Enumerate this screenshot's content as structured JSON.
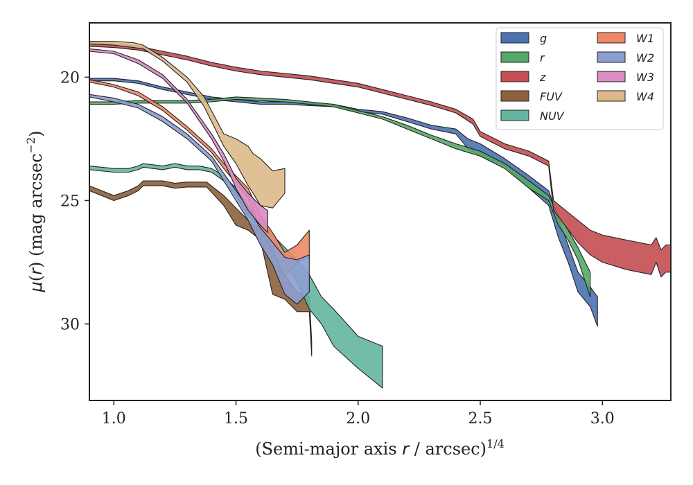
{
  "chart_data": {
    "type": "area",
    "xlabel_main": "(Semi-major axis ",
    "xlabel_var": "r",
    "xlabel_tail": " / arcsec)",
    "xlabel_exp": "1/4",
    "ylabel_main": "(",
    "ylabel_mu": "μ",
    "ylabel_var": "r",
    "ylabel_tail": ") (mag arcsec",
    "ylabel_exp": "−2",
    "ylabel_close": ")",
    "xlim": [
      0.9,
      3.28
    ],
    "ylim": [
      33.1,
      17.8
    ],
    "y_inverted": true,
    "grid": false,
    "legend_placement": "top-right",
    "xticks": [
      {
        "v": 1.0,
        "label": "1.0"
      },
      {
        "v": 1.5,
        "label": "1.5"
      },
      {
        "v": 2.0,
        "label": "2.0"
      },
      {
        "v": 2.5,
        "label": "2.5"
      },
      {
        "v": 3.0,
        "label": "3.0"
      }
    ],
    "yticks": [
      {
        "v": 20,
        "label": "20"
      },
      {
        "v": 25,
        "label": "25"
      },
      {
        "v": 30,
        "label": "30"
      }
    ],
    "series": [
      {
        "name": "g",
        "color": "#4c72b0",
        "x": [
          0.9,
          1.0,
          1.1,
          1.2,
          1.3,
          1.4,
          1.5,
          1.6,
          1.7,
          1.8,
          1.9,
          2.0,
          2.1,
          2.2,
          2.3,
          2.4,
          2.45,
          2.5,
          2.6,
          2.7,
          2.78,
          2.82,
          2.86,
          2.9,
          2.95,
          2.98
        ],
        "y_upper": [
          20.05,
          20.05,
          20.15,
          20.4,
          20.6,
          20.8,
          20.9,
          21.0,
          21.0,
          21.05,
          21.1,
          21.3,
          21.4,
          21.65,
          21.95,
          22.1,
          22.5,
          22.7,
          23.3,
          24.0,
          24.6,
          25.7,
          26.8,
          27.9,
          28.5,
          28.9
        ],
        "y_lower": [
          20.15,
          20.15,
          20.25,
          20.5,
          20.7,
          20.9,
          21.0,
          21.1,
          21.1,
          21.15,
          21.2,
          21.4,
          21.5,
          21.8,
          22.1,
          22.3,
          22.9,
          23.2,
          23.6,
          24.5,
          25.2,
          26.5,
          27.5,
          28.7,
          29.3,
          30.1
        ]
      },
      {
        "name": "r",
        "color": "#55a868",
        "x": [
          0.9,
          1.0,
          1.1,
          1.2,
          1.3,
          1.4,
          1.5,
          1.6,
          1.7,
          1.8,
          1.9,
          2.0,
          2.1,
          2.2,
          2.3,
          2.4,
          2.5,
          2.6,
          2.7,
          2.78,
          2.82,
          2.86,
          2.9,
          2.95
        ],
        "y_upper": [
          21.0,
          21.0,
          20.95,
          20.95,
          20.95,
          20.9,
          20.8,
          20.85,
          20.9,
          21.0,
          21.1,
          21.35,
          21.6,
          21.95,
          22.35,
          22.7,
          23.0,
          23.5,
          24.2,
          24.8,
          25.6,
          26.2,
          26.9,
          27.9
        ],
        "y_lower": [
          21.1,
          21.1,
          21.05,
          21.05,
          21.05,
          21.0,
          20.9,
          20.95,
          21.0,
          21.1,
          21.2,
          21.45,
          21.7,
          22.1,
          22.5,
          22.9,
          23.2,
          23.7,
          24.5,
          25.0,
          26.0,
          26.6,
          27.4,
          28.9
        ]
      },
      {
        "name": "z",
        "color": "#c44e52",
        "x": [
          0.9,
          1.0,
          1.1,
          1.2,
          1.3,
          1.4,
          1.5,
          1.6,
          1.7,
          1.8,
          1.9,
          2.0,
          2.1,
          2.2,
          2.3,
          2.4,
          2.47,
          2.5,
          2.6,
          2.7,
          2.78,
          2.8,
          2.9,
          2.95,
          3.0,
          3.1,
          3.2,
          3.22,
          3.24,
          3.26,
          3.28
        ],
        "y_upper": [
          18.6,
          18.65,
          18.75,
          18.95,
          19.15,
          19.4,
          19.6,
          19.75,
          19.85,
          19.95,
          20.1,
          20.25,
          20.5,
          20.75,
          21.0,
          21.3,
          21.7,
          22.2,
          22.7,
          23.0,
          23.4,
          25.0,
          25.8,
          26.2,
          26.4,
          26.6,
          26.8,
          26.5,
          27.0,
          26.8,
          26.8
        ],
        "y_lower": [
          18.75,
          18.8,
          18.9,
          19.1,
          19.3,
          19.55,
          19.75,
          19.9,
          20.0,
          20.1,
          20.25,
          20.4,
          20.65,
          20.9,
          21.15,
          21.45,
          21.9,
          22.4,
          22.9,
          23.2,
          23.6,
          25.4,
          26.7,
          27.2,
          27.5,
          27.8,
          28.0,
          27.5,
          28.1,
          27.9,
          27.9
        ]
      },
      {
        "name": "FUV",
        "color": "#8c613c",
        "x": [
          0.9,
          1.0,
          1.06,
          1.1,
          1.12,
          1.2,
          1.25,
          1.3,
          1.38,
          1.45,
          1.5,
          1.55,
          1.6,
          1.65,
          1.7,
          1.75,
          1.8,
          1.81
        ],
        "y_upper": [
          24.4,
          24.8,
          24.6,
          24.4,
          24.2,
          24.2,
          24.3,
          24.25,
          24.25,
          24.8,
          25.3,
          25.8,
          26.2,
          27.0,
          28.0,
          28.7,
          28.9,
          30.7
        ],
        "y_lower": [
          24.6,
          25.0,
          24.8,
          24.6,
          24.4,
          24.4,
          24.5,
          24.45,
          24.45,
          25.2,
          26.0,
          26.2,
          26.6,
          28.8,
          29.0,
          29.5,
          29.5,
          31.3
        ]
      },
      {
        "name": "NUV",
        "color": "#64b5a0",
        "x": [
          0.9,
          1.0,
          1.06,
          1.1,
          1.12,
          1.2,
          1.25,
          1.3,
          1.35,
          1.4,
          1.45,
          1.5,
          1.55,
          1.6,
          1.65,
          1.7,
          1.75,
          1.8,
          1.85,
          1.9,
          2.0,
          2.1
        ],
        "y_upper": [
          23.6,
          23.7,
          23.7,
          23.6,
          23.5,
          23.6,
          23.5,
          23.6,
          23.6,
          23.7,
          24.0,
          24.5,
          25.2,
          25.9,
          26.4,
          26.9,
          27.4,
          28.0,
          28.9,
          29.4,
          30.5,
          30.9
        ],
        "y_lower": [
          23.75,
          23.85,
          23.85,
          23.75,
          23.65,
          23.75,
          23.65,
          23.75,
          23.75,
          23.85,
          24.2,
          24.8,
          25.6,
          26.2,
          26.9,
          27.5,
          28.3,
          29.4,
          30.0,
          30.9,
          31.8,
          32.6
        ]
      },
      {
        "name": "W1",
        "color": "#ee8866",
        "x": [
          0.9,
          1.0,
          1.1,
          1.2,
          1.3,
          1.4,
          1.45,
          1.5,
          1.55,
          1.6,
          1.65,
          1.7,
          1.75,
          1.8
        ],
        "y_upper": [
          20.1,
          20.3,
          20.6,
          21.2,
          22.0,
          22.9,
          23.5,
          24.0,
          24.5,
          25.6,
          26.3,
          27.1,
          26.8,
          26.2
        ],
        "y_lower": [
          20.2,
          20.4,
          20.75,
          21.35,
          22.15,
          23.05,
          23.7,
          24.3,
          24.9,
          26.2,
          27.0,
          28.1,
          27.5,
          27.3
        ]
      },
      {
        "name": "W2",
        "color": "#8c9ed0",
        "x": [
          0.9,
          1.0,
          1.1,
          1.2,
          1.3,
          1.4,
          1.45,
          1.5,
          1.55,
          1.6,
          1.65,
          1.7,
          1.75,
          1.8
        ],
        "y_upper": [
          20.7,
          20.85,
          21.1,
          21.6,
          22.3,
          23.2,
          23.9,
          24.6,
          25.3,
          26.1,
          26.7,
          27.3,
          27.4,
          27.2
        ],
        "y_lower": [
          20.8,
          21.0,
          21.25,
          21.8,
          22.5,
          23.4,
          24.2,
          25.0,
          25.8,
          26.8,
          27.6,
          28.8,
          29.2,
          28.7
        ]
      },
      {
        "name": "W3",
        "color": "#da8bc3",
        "x": [
          0.9,
          1.0,
          1.1,
          1.2,
          1.3,
          1.4,
          1.45,
          1.5,
          1.55,
          1.6,
          1.63
        ],
        "y_upper": [
          18.85,
          18.95,
          19.3,
          19.9,
          20.9,
          22.3,
          23.1,
          24.1,
          24.7,
          25.2,
          25.4
        ],
        "y_lower": [
          18.95,
          19.05,
          19.45,
          20.05,
          21.05,
          22.5,
          23.4,
          24.5,
          25.4,
          26.0,
          26.3
        ]
      },
      {
        "name": "W4",
        "color": "#ddb98a",
        "x": [
          0.9,
          1.0,
          1.08,
          1.12,
          1.2,
          1.3,
          1.37,
          1.45,
          1.5,
          1.55,
          1.57,
          1.6,
          1.65,
          1.7
        ],
        "y_upper": [
          18.55,
          18.55,
          18.6,
          18.7,
          19.2,
          20.0,
          20.8,
          22.3,
          22.5,
          22.8,
          23.1,
          23.3,
          23.8,
          23.7
        ],
        "y_lower": [
          18.65,
          18.7,
          18.8,
          18.85,
          19.35,
          20.2,
          21.2,
          22.8,
          23.5,
          24.4,
          24.7,
          25.2,
          25.3,
          24.7
        ]
      }
    ]
  }
}
